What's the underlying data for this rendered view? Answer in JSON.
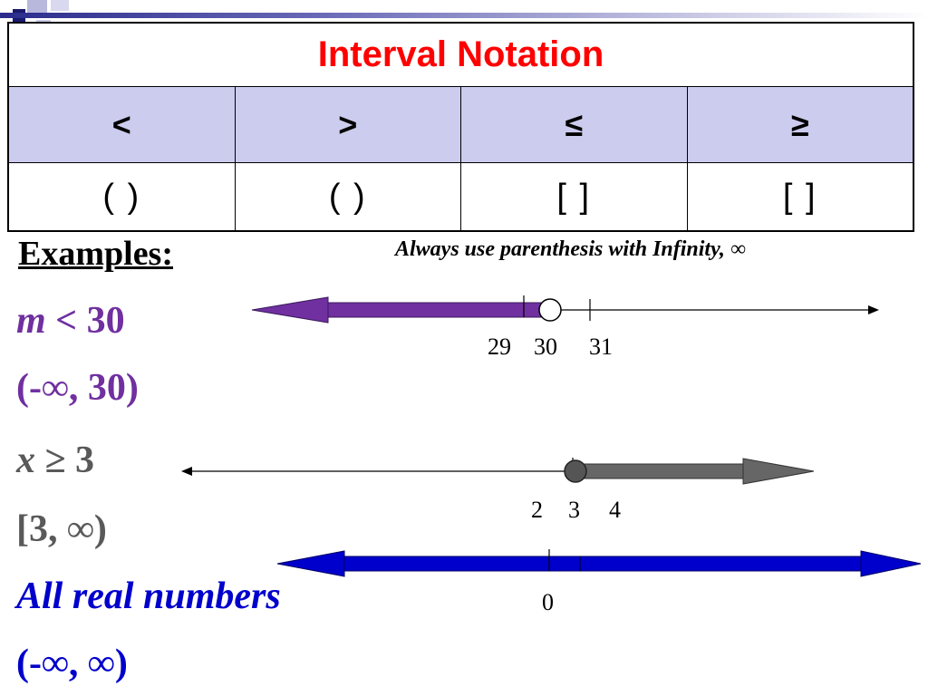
{
  "table": {
    "title": "Interval Notation",
    "headers": [
      "<",
      ">",
      "≤",
      "≥"
    ],
    "notations": [
      "(   )",
      "(   )",
      "[   ]",
      "[   ]"
    ]
  },
  "examples_label": "Examples:",
  "infinity_note": "Always use parenthesis with Infinity, ∞",
  "example1": {
    "var": "m",
    "inequality_rest": " < 30",
    "interval": "(-∞, 30)",
    "ticks": [
      "29",
      "30",
      "31"
    ],
    "color": "#7030a0"
  },
  "example2": {
    "var": "x",
    "inequality_rest": " ≥ 3",
    "interval": "[3, ∞)",
    "ticks": [
      "2",
      "3",
      "4"
    ],
    "color": "#595959"
  },
  "example3": {
    "label": "All real numbers",
    "interval": "(-∞, ∞)",
    "ticks": [
      "0"
    ],
    "color": "#0000cc"
  },
  "colors": {
    "title_red": "#ff0000",
    "header_fill": "#ccccee",
    "accent_navy": "#2b2b8c"
  }
}
